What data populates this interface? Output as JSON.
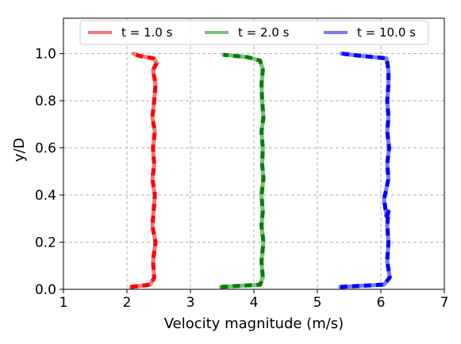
{
  "chart_data": {
    "type": "line",
    "xlabel": "Velocity magnitude (m/s)",
    "ylabel": "y/D",
    "xlim": [
      1,
      7
    ],
    "ylim": [
      0,
      1.15
    ],
    "xticks": [
      "1",
      "2",
      "3",
      "4",
      "5",
      "6",
      "7"
    ],
    "yticks": [
      "0.0",
      "0.2",
      "0.4",
      "0.6",
      "0.8",
      "1.0"
    ],
    "grid": true,
    "legend_position": "top",
    "series": [
      {
        "name": "t = 1.0 s",
        "color": "#ff0000",
        "light_color": "#f07a7a",
        "x": [
          2.06,
          2.37,
          2.43,
          2.41,
          2.45,
          2.4,
          2.42,
          2.44,
          2.4,
          2.43,
          2.41,
          2.44,
          2.4,
          2.43,
          2.45,
          2.41,
          2.47,
          2.42,
          2.2,
          2.1
        ],
        "y": [
          0.01,
          0.02,
          0.05,
          0.12,
          0.2,
          0.27,
          0.33,
          0.4,
          0.47,
          0.53,
          0.6,
          0.67,
          0.73,
          0.8,
          0.87,
          0.93,
          0.96,
          0.98,
          0.99,
          1.0
        ]
      },
      {
        "name": "t = 2.0 s",
        "color": "#008000",
        "light_color": "#7bbf7b",
        "x": [
          3.48,
          4.1,
          4.14,
          4.12,
          4.15,
          4.12,
          4.14,
          4.12,
          4.15,
          4.13,
          4.14,
          4.12,
          4.15,
          4.13,
          4.12,
          4.14,
          4.1,
          3.9,
          3.52
        ],
        "y": [
          0.01,
          0.02,
          0.05,
          0.12,
          0.2,
          0.27,
          0.33,
          0.4,
          0.47,
          0.53,
          0.6,
          0.67,
          0.73,
          0.8,
          0.87,
          0.93,
          0.97,
          0.985,
          0.995
        ]
      },
      {
        "name": "t = 10.0 s",
        "color": "#0000ff",
        "light_color": "#7a7af5",
        "x": [
          5.36,
          6.05,
          6.14,
          6.1,
          6.12,
          6.1,
          6.12,
          6.09,
          6.05,
          6.12,
          6.1,
          6.13,
          6.1,
          6.12,
          6.1,
          6.12,
          6.12,
          6.09,
          5.7,
          5.38
        ],
        "y": [
          0.01,
          0.02,
          0.05,
          0.12,
          0.2,
          0.27,
          0.33,
          0.31,
          0.38,
          0.47,
          0.53,
          0.6,
          0.67,
          0.73,
          0.8,
          0.87,
          0.93,
          0.98,
          0.99,
          1.0
        ]
      }
    ]
  }
}
